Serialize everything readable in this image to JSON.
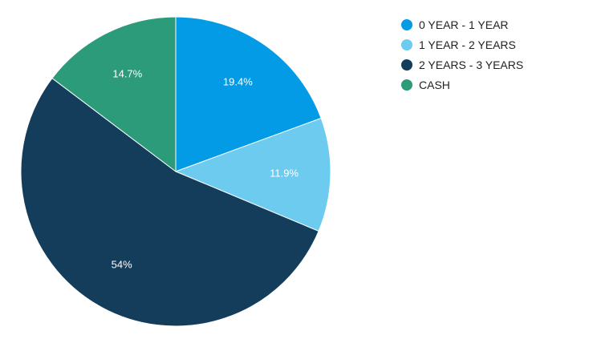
{
  "chart_data": {
    "type": "pie",
    "categories": [
      "0 YEAR - 1 YEAR",
      "1 YEAR - 2 YEARS",
      "2 YEARS - 3 YEARS",
      "CASH"
    ],
    "values": [
      19.4,
      11.9,
      54,
      14.7
    ],
    "value_labels": [
      "19.4%",
      "11.9%",
      "54%",
      "14.7%"
    ],
    "colors": [
      "#039be5",
      "#6ccbee",
      "#143d5c",
      "#2b9b7a"
    ],
    "start_angle": "12 o'clock",
    "direction": "clockwise",
    "legend_position": "top-right",
    "title": ""
  }
}
